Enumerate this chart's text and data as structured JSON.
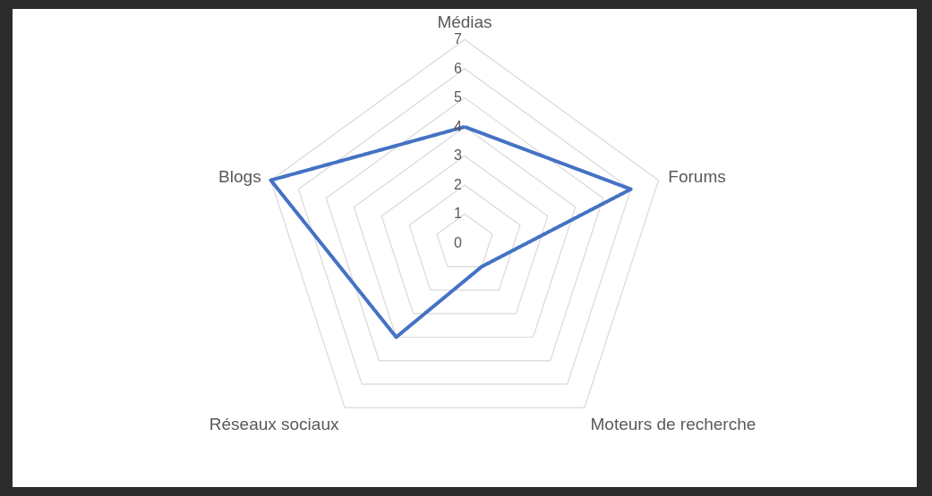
{
  "chart_data": {
    "type": "radar",
    "categories": [
      "Médias",
      "Forums",
      "Moteurs de recherche",
      "Réseaux sociaux",
      "Blogs"
    ],
    "series": [
      {
        "color": "#4472c4",
        "values": [
          4,
          6,
          1,
          4,
          7
        ]
      }
    ],
    "ylim": [
      0,
      7
    ],
    "yticks": [
      0,
      1,
      2,
      3,
      4,
      5,
      6,
      7
    ],
    "grid": true
  }
}
